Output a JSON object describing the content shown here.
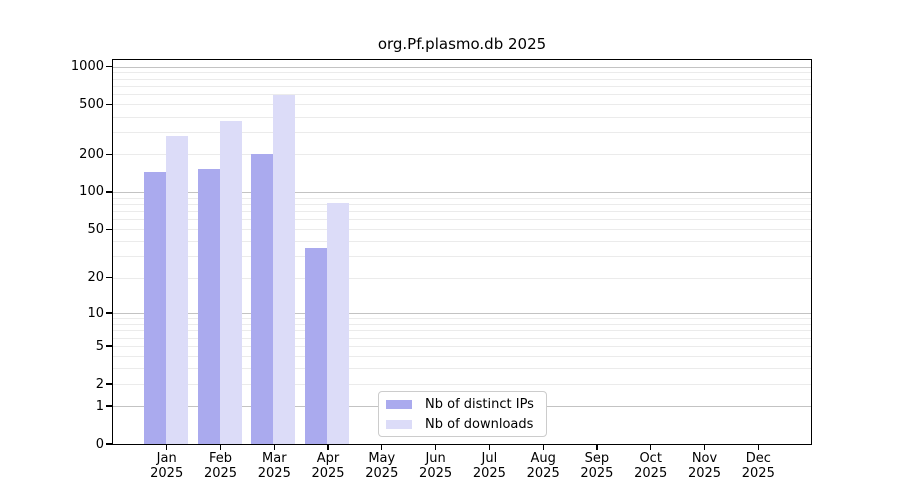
{
  "chart_data": {
    "type": "bar",
    "title": "org.Pf.plasmo.db 2025",
    "scale": "log10(1+x)",
    "grid": "horizontal",
    "legend_position": "bottom-center",
    "year": "2025",
    "categories": [
      "Jan",
      "Feb",
      "Mar",
      "Apr",
      "May",
      "Jun",
      "Jul",
      "Aug",
      "Sep",
      "Oct",
      "Nov",
      "Dec"
    ],
    "series": [
      {
        "name": "Nb of distinct IPs",
        "color": "#aaaaee",
        "values": [
          145,
          153,
          200,
          35,
          null,
          null,
          null,
          null,
          null,
          null,
          null,
          null
        ]
      },
      {
        "name": "Nb of downloads",
        "color": "#dcdcf8",
        "values": [
          278,
          370,
          590,
          82,
          null,
          null,
          null,
          null,
          null,
          null,
          null,
          null
        ]
      }
    ],
    "y_ticks": [
      0,
      1,
      2,
      5,
      10,
      20,
      50,
      100,
      200,
      500,
      1000
    ],
    "ylim": [
      0,
      1150
    ],
    "xlabel": "",
    "ylabel": ""
  }
}
